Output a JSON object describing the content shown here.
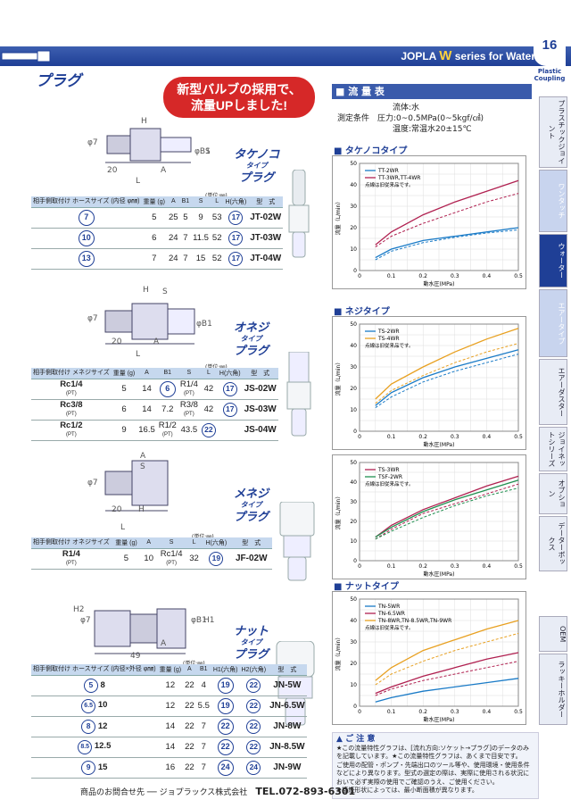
{
  "header": {
    "brand": "JOPLA",
    "series_letter": "W",
    "series_text": "series for Water",
    "page": "16",
    "category": "Plastic Coupling"
  },
  "title": "プラグ",
  "banner": [
    "新型バルブの採用で、",
    "流量UPしました!"
  ],
  "sections": [
    {
      "type_label": [
        "タケノコ",
        "タイプ",
        "プラグ"
      ],
      "unit": "(単位:㎜)",
      "model_col": "型　式",
      "header": [
        "相手側取付け ホースサイズ (内径 φ㎜)",
        "重量 (g)",
        "A",
        "B1",
        "S",
        "L",
        "H(六角)"
      ],
      "rows": [
        [
          "7",
          "5",
          "25",
          "5",
          "9",
          "53",
          "17",
          "JT-02W"
        ],
        [
          "10",
          "6",
          "24",
          "7",
          "11.5",
          "52",
          "17",
          "JT-03W"
        ],
        [
          "13",
          "7",
          "24",
          "7",
          "15",
          "52",
          "17",
          "JT-04W"
        ]
      ]
    },
    {
      "type_label": [
        "オネジ",
        "タイプ",
        "プラグ"
      ],
      "unit": "(単位:㎜)",
      "model_col": "型　式",
      "header": [
        "相手側取付け メネジサイズ",
        "重量 (g)",
        "A",
        "B1",
        "S",
        "L",
        "H(六角)"
      ],
      "rows": [
        [
          "Rc1/4",
          "(PT)",
          "5",
          "14",
          "6",
          "R1/4",
          "(PT)",
          "42",
          "17",
          "JS-02W"
        ],
        [
          "Rc3/8",
          "(PT)",
          "6",
          "14",
          "7.2",
          "R3/8",
          "(PT)",
          "42",
          "17",
          "JS-03W"
        ],
        [
          "Rc1/2",
          "(PT)",
          "9",
          "16.5",
          "14",
          "R1/2",
          "(PT)",
          "43.5",
          "22",
          "JS-04W"
        ]
      ]
    },
    {
      "type_label": [
        "メネジ",
        "タイプ",
        "プラグ"
      ],
      "unit": "(単位:㎜)",
      "model_col": "型　式",
      "header": [
        "相手側取付け オネジサイズ",
        "重量 (g)",
        "A",
        "S",
        "L",
        "H(六角)"
      ],
      "rows": [
        [
          "R1/4",
          "(PT)",
          "5",
          "10",
          "Rc1/4",
          "(PT)",
          "32",
          "19",
          "JF-02W"
        ]
      ]
    },
    {
      "type_label": [
        "ナット",
        "タイプ",
        "プラグ"
      ],
      "unit": "(単位:㎜)",
      "model_col": "型　式",
      "header": [
        "相手側取付け ホースサイズ (内径×外径 φ㎜)",
        "重量 (g)",
        "A",
        "B1",
        "H1(六角)",
        "H2(六角)"
      ],
      "rows": [
        [
          "5",
          "8",
          "12",
          "22",
          "4",
          "19",
          "22",
          "JN-5W"
        ],
        [
          "6.5",
          "10",
          "12",
          "22",
          "5.5",
          "19",
          "22",
          "JN-6.5W"
        ],
        [
          "8",
          "12",
          "14",
          "22",
          "7",
          "22",
          "22",
          "JN-8W"
        ],
        [
          "8.5",
          "12.5",
          "14",
          "22",
          "7",
          "22",
          "22",
          "JN-8.5W"
        ],
        [
          "9",
          "15",
          "16",
          "22",
          "7",
          "24",
          "24",
          "JN-9W"
        ]
      ]
    }
  ],
  "dims": {
    "d1": {
      "H": "H",
      "phi": "φ7",
      "phiB": "φB1",
      "S": "S",
      "A": "A",
      "L": "L",
      "n20": "20"
    },
    "d2": {
      "H": "H",
      "S": "S",
      "phi": "φ7",
      "phiB": "φB1",
      "n20": "20",
      "A": "A",
      "L": "L"
    },
    "d3": {
      "A": "A",
      "S": "S",
      "phi": "φ7",
      "H": "H",
      "n20": "20",
      "L": "L"
    },
    "d4": {
      "H2": "H2",
      "phi": "φ7",
      "phiB": "φB1",
      "H1": "H1",
      "A": "A",
      "n49": "49"
    }
  },
  "flow": {
    "title": "流 量 表",
    "cond": [
      "流体:水",
      "測定条件　圧力:0~0.5MPa(0~5kgf/㎠)",
      "温度:常温水20±15℃"
    ]
  },
  "charts_meta": {
    "ylabel": "流量（L/min）",
    "xlabel": "動水圧(MPa)",
    "dotted_note": "点線は旧従来品です。"
  },
  "chart_data": [
    {
      "type": "line",
      "title": "タケノコタイプ",
      "x": [
        0.05,
        0.1,
        0.2,
        0.3,
        0.4,
        0.5
      ],
      "ylim": [
        0,
        50
      ],
      "xlim": [
        0,
        0.5
      ],
      "series": [
        {
          "name": "TT-2WR",
          "color": "#1a7bc7",
          "values": [
            6,
            10,
            14,
            16,
            18,
            20
          ]
        },
        {
          "name": "TT-3WR,TT-4WR",
          "color": "#b02050",
          "values": [
            12,
            18,
            26,
            32,
            37,
            42
          ]
        }
      ],
      "old": [
        {
          "color": "#1a7bc7",
          "values": [
            5,
            9,
            13,
            15.5,
            17.5,
            19
          ]
        },
        {
          "color": "#b02050",
          "values": [
            11,
            16,
            22,
            27,
            32,
            36
          ]
        }
      ]
    },
    {
      "type": "line",
      "title": "ネジタイプ",
      "x": [
        0.05,
        0.1,
        0.2,
        0.3,
        0.4,
        0.5
      ],
      "ylim": [
        0,
        50
      ],
      "xlim": [
        0,
        0.5
      ],
      "series": [
        {
          "name": "TS-2WR",
          "color": "#1a7bc7",
          "values": [
            12,
            18,
            25,
            30,
            34,
            38
          ]
        },
        {
          "name": "TS-4WR",
          "color": "#e8a020",
          "values": [
            15,
            22,
            30,
            37,
            43,
            48
          ]
        }
      ],
      "old": [
        {
          "color": "#1a7bc7",
          "values": [
            11,
            16,
            23,
            28,
            32,
            36
          ]
        },
        {
          "color": "#e8a020",
          "values": [
            13,
            19,
            26,
            32,
            37,
            41
          ]
        }
      ]
    },
    {
      "type": "line",
      "title": "",
      "x": [
        0.05,
        0.1,
        0.2,
        0.3,
        0.4,
        0.5
      ],
      "ylim": [
        0,
        50
      ],
      "xlim": [
        0,
        0.5
      ],
      "series": [
        {
          "name": "TS-3WR",
          "color": "#b02050",
          "values": [
            12,
            18,
            26,
            32,
            38,
            43
          ]
        },
        {
          "name": "TSF-2WR",
          "color": "#209050",
          "values": [
            12,
            17,
            25,
            31,
            36,
            41
          ]
        }
      ],
      "old": [
        {
          "color": "#b02050",
          "values": [
            11,
            16,
            24,
            29,
            34,
            39
          ]
        },
        {
          "color": "#209050",
          "values": [
            11,
            15,
            22,
            28,
            33,
            37
          ]
        }
      ]
    },
    {
      "type": "line",
      "title": "ナットタイプ",
      "x": [
        0.05,
        0.1,
        0.2,
        0.3,
        0.4,
        0.5
      ],
      "ylim": [
        0,
        50
      ],
      "xlim": [
        0,
        0.5
      ],
      "series": [
        {
          "name": "TN-5WR",
          "color": "#1a7bc7",
          "values": [
            2,
            4,
            7,
            9,
            11,
            13
          ]
        },
        {
          "name": "TN-6.5WR",
          "color": "#b02050",
          "values": [
            6,
            9,
            14,
            18,
            22,
            25
          ]
        },
        {
          "name": "TN-8WR,TN-8.5WR,TN-9WR",
          "color": "#e8a020",
          "values": [
            12,
            18,
            26,
            31,
            36,
            40
          ]
        }
      ],
      "old": [
        {
          "color": "#b02050",
          "values": [
            5,
            8,
            12,
            15,
            18,
            21
          ]
        },
        {
          "color": "#e8a020",
          "values": [
            10,
            15,
            21,
            26,
            30,
            34
          ]
        }
      ]
    }
  ],
  "ticks": {
    "y": [
      "0",
      "10",
      "20",
      "30",
      "40",
      "50"
    ],
    "x": [
      "0",
      "0.1",
      "0.2",
      "0.3",
      "0.4",
      "0.5"
    ]
  },
  "tabs": [
    "プラスチックジョイント",
    "ワンタッチ",
    "ウォーター",
    "エアータイプ",
    "エアーダスター",
    "ジョイネットシリーズ",
    "オプション",
    "データーボックス",
    "OEM",
    "ラッキーホルダー"
  ],
  "note": {
    "title": "ご 注 意",
    "lines": [
      "★この流量特性グラフは、[流れ方向:ソケット→プラグ]のデータのみを記載しています。★この流量特性グラフは、あくまで目安です。",
      "ご使用の配管・ポンプ・先端出口のツール等や、使用環境・使用条件などにより異なります。型式の選定の際は、実際に使用される状況において必ず実際の使用でご確認のうえ、ご使用ください。",
      "★接続形状によっては、最小断面積が異なります。"
    ]
  },
  "footer": {
    "label": "商品のお問合せ先",
    "company": "ジョプラックス株式会社",
    "tel": "TEL.072-893-6301"
  }
}
